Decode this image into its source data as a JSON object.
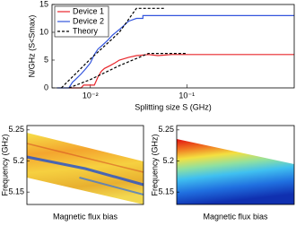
{
  "chart_data": [
    {
      "type": "line",
      "xlabel": "Splitting size S (GHz)",
      "ylabel": "N/GHz (S<Smax)",
      "xscale": "log",
      "xlim": [
        0.004,
        1.3
      ],
      "xticks": [
        {
          "value": 0.01,
          "label": "10⁻²"
        },
        {
          "value": 0.1,
          "label": "10⁻¹"
        }
      ],
      "ylim": [
        0,
        15
      ],
      "yticks": [
        0,
        5,
        10,
        15
      ],
      "grid": false,
      "legend": "upper-left",
      "series": [
        {
          "name": "Device 1",
          "color": "#e8262b",
          "style": "solid",
          "x": [
            0.006,
            0.008,
            0.0085,
            0.011,
            0.012,
            0.013,
            0.014,
            0.016,
            0.018,
            0.02,
            0.025,
            0.03,
            0.04,
            0.05,
            0.07,
            0.1,
            1.3
          ],
          "values": [
            0,
            0,
            0.5,
            0.5,
            2,
            3,
            3.5,
            4,
            4.5,
            5,
            5.5,
            5.8,
            6,
            5.8,
            6,
            6,
            6
          ]
        },
        {
          "name": "Device 2",
          "color": "#3355dd",
          "style": "solid",
          "x": [
            0.0045,
            0.006,
            0.0065,
            0.007,
            0.008,
            0.009,
            0.01,
            0.011,
            0.012,
            0.013,
            0.015,
            0.017,
            0.02,
            0.025,
            0.03,
            0.035,
            0.035,
            1.3
          ],
          "values": [
            0,
            0,
            1,
            1.5,
            2.5,
            3.5,
            4.5,
            6,
            7,
            7.5,
            8.5,
            9.5,
            10.5,
            12,
            12.5,
            12.5,
            13,
            13
          ]
        },
        {
          "name": "Theory",
          "color": "#000000",
          "style": "dashed",
          "x": [
            0.005,
            0.01,
            0.02,
            0.03,
            0.06,
            null,
            0.006,
            0.01,
            0.02,
            0.04,
            0.1
          ],
          "values": [
            0,
            5.2,
            10,
            14.3,
            14.3,
            null,
            0,
            1.5,
            4,
            6.2,
            6.2
          ]
        }
      ]
    },
    {
      "type": "heatmap",
      "variant": "measured",
      "xlabel": "Magnetic flux bias",
      "ylabel": "Frequency (GHz)",
      "ylim": [
        5.13,
        5.257
      ],
      "yticks": [
        5.15,
        5.2,
        5.25
      ]
    },
    {
      "type": "heatmap",
      "variant": "theory",
      "xlabel": "Magnetic flux bias",
      "ylabel": "Frequency (GHz)",
      "ylim": [
        5.13,
        5.257
      ],
      "yticks": [
        5.15,
        5.2,
        5.25
      ]
    }
  ]
}
